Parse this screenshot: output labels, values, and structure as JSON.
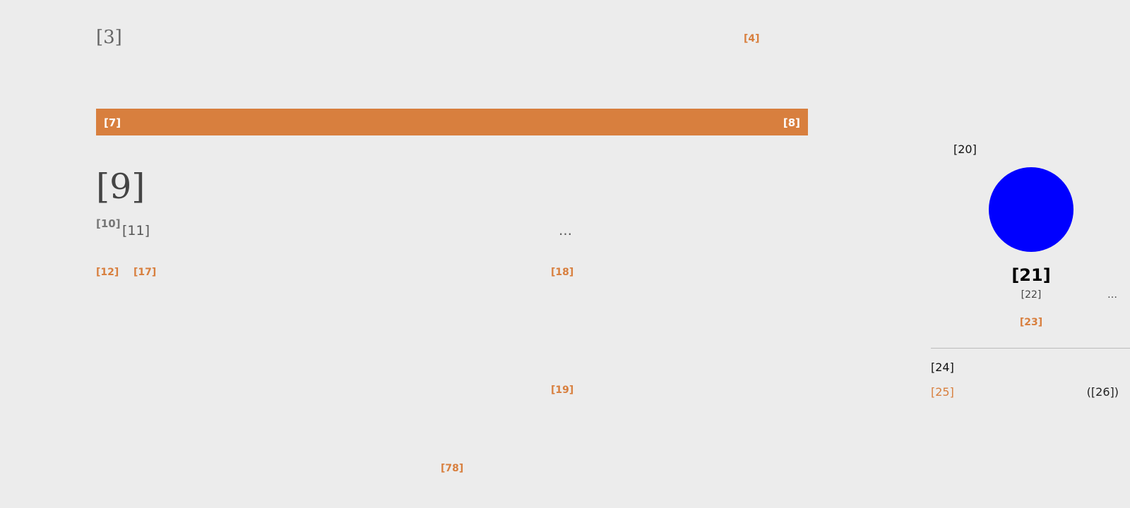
{
  "colors": {
    "background": "#ececec",
    "accent": "#d87f3e",
    "avatar": "#0000ff"
  },
  "header": {
    "site_title": "[3]",
    "link": "[4]"
  },
  "nav": {
    "left_label": "[7]",
    "right_label": "[8]"
  },
  "post": {
    "title": "[9]",
    "vote_count": "[10]",
    "meta": "[11]",
    "more": "…",
    "links": [
      "[12]",
      "[17]",
      "[18]",
      "[19]"
    ]
  },
  "footer": {
    "link": "[78]"
  },
  "sidebar": {
    "label": "[20]",
    "avatar_icon": "avatar-circle",
    "profile": {
      "name": "[21]",
      "subtitle": "[22]",
      "more": "…",
      "link": "[23]"
    },
    "section": {
      "heading": "[24]",
      "items": [
        {
          "label": "[25]",
          "count": "([26])"
        }
      ]
    }
  }
}
